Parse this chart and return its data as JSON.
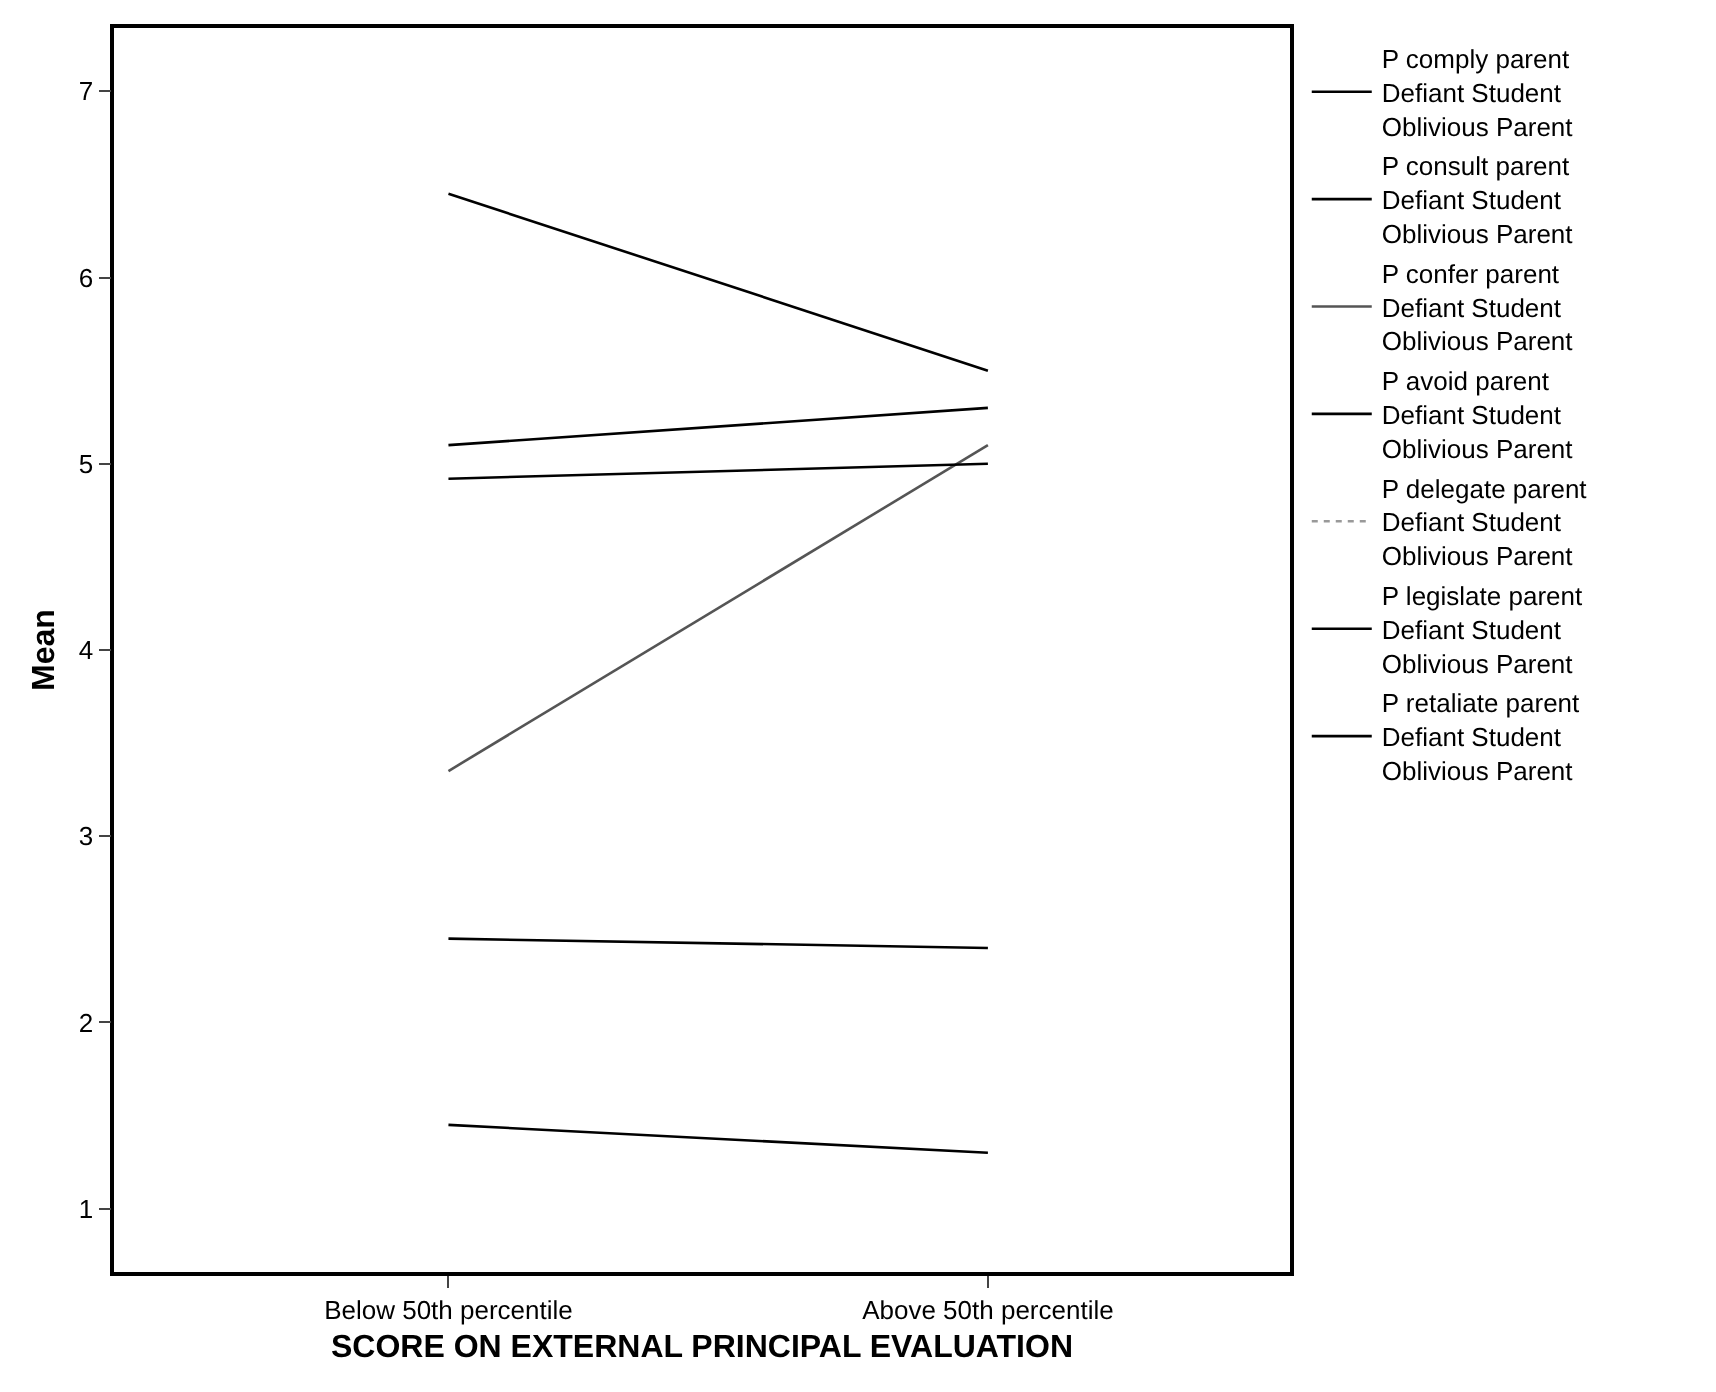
{
  "chart_data": {
    "type": "line",
    "xlabel": "SCORE ON EXTERNAL PRINCIPAL EVALUATION",
    "ylabel": "Mean",
    "categories": [
      "Below 50th percentile",
      "Above 50th percentile"
    ],
    "ylim": [
      0.66,
      7.34
    ],
    "yticks": [
      1,
      2,
      3,
      4,
      5,
      6,
      7
    ],
    "grid": false,
    "legend": "right",
    "marker": "none",
    "series": [
      {
        "name": "P comply parent\nDefiant Student\nOblivious Parent",
        "color": "#000000",
        "line_style": "solid",
        "values": [
          5.1,
          5.3
        ]
      },
      {
        "name": "P consult parent\nDefiant Student\nOblivious Parent",
        "color": "#000000",
        "line_style": "solid",
        "values": [
          6.45,
          5.5
        ]
      },
      {
        "name": "P confer parent\nDefiant Student\nOblivious Parent",
        "color": "#555555",
        "line_style": "solid",
        "values": [
          3.35,
          5.1
        ]
      },
      {
        "name": "P avoid parent\nDefiant Student\nOblivious Parent",
        "color": "#000000",
        "line_style": "solid",
        "values": [
          4.92,
          5.0
        ]
      },
      {
        "name": "P delegate parent\nDefiant Student\nOblivious Parent",
        "color": "#999999",
        "line_style": "dotted",
        "values": [
          null,
          null
        ]
      },
      {
        "name": "P legislate parent\nDefiant Student\nOblivious Parent",
        "color": "#000000",
        "line_style": "solid",
        "values": [
          2.45,
          2.4
        ]
      },
      {
        "name": "P retaliate parent\nDefiant Student\nOblivious Parent",
        "color": "#000000",
        "line_style": "solid",
        "values": [
          1.45,
          1.3
        ]
      }
    ]
  }
}
